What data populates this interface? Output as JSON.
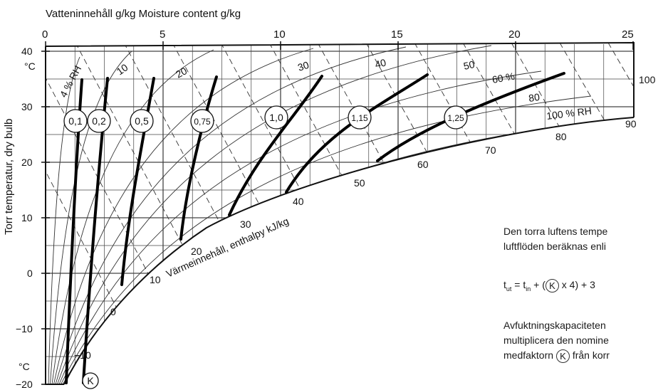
{
  "top_axis": {
    "title": "Vatteninnehåll g/kg  Moisture content g/kg",
    "ticks": [
      "0",
      "5",
      "10",
      "15",
      "20",
      "25"
    ]
  },
  "left_axis": {
    "title": "Torr temperatur, dry bulb",
    "ticks": [
      "40",
      "30",
      "20",
      "10",
      "0",
      "−10",
      "−20"
    ],
    "unit_top": "°C",
    "unit_bottom": "°C"
  },
  "rh_labels": [
    "4 % RH",
    "10",
    "20",
    "30",
    "40",
    "50",
    "60 %",
    "80",
    "100 % RH"
  ],
  "enthalpy_labels": [
    "−10",
    "0",
    "10",
    "20",
    "30",
    "40",
    "50",
    "60",
    "70",
    "80",
    "90",
    "100"
  ],
  "enthalpy_title": "Värmeinnehåll, enthalpy kJ/kg",
  "k_factors": [
    "0,1",
    "0,2",
    "0,5",
    "0,75",
    "1,0",
    "1,15",
    "1,25"
  ],
  "k_symbol": "K",
  "side_text": {
    "line1": "Den torra luftens tempe",
    "line2": "luftflöden beräknas enli",
    "formula_t": "t",
    "formula_ut": "ut",
    "formula_eq": " = t",
    "formula_in": "in",
    "formula_plus": " + (",
    "formula_k": "K",
    "formula_rest": " x 4) + 3",
    "line4": "Avfuktningskapaciteten",
    "line5": "multiplicera den nomine",
    "line6_pre": "medfaktorn",
    "line6_k": "K",
    "line6_post": " från korr"
  },
  "colors": {
    "ink": "#111111",
    "grid": "#555555",
    "bg": "#ffffff"
  }
}
